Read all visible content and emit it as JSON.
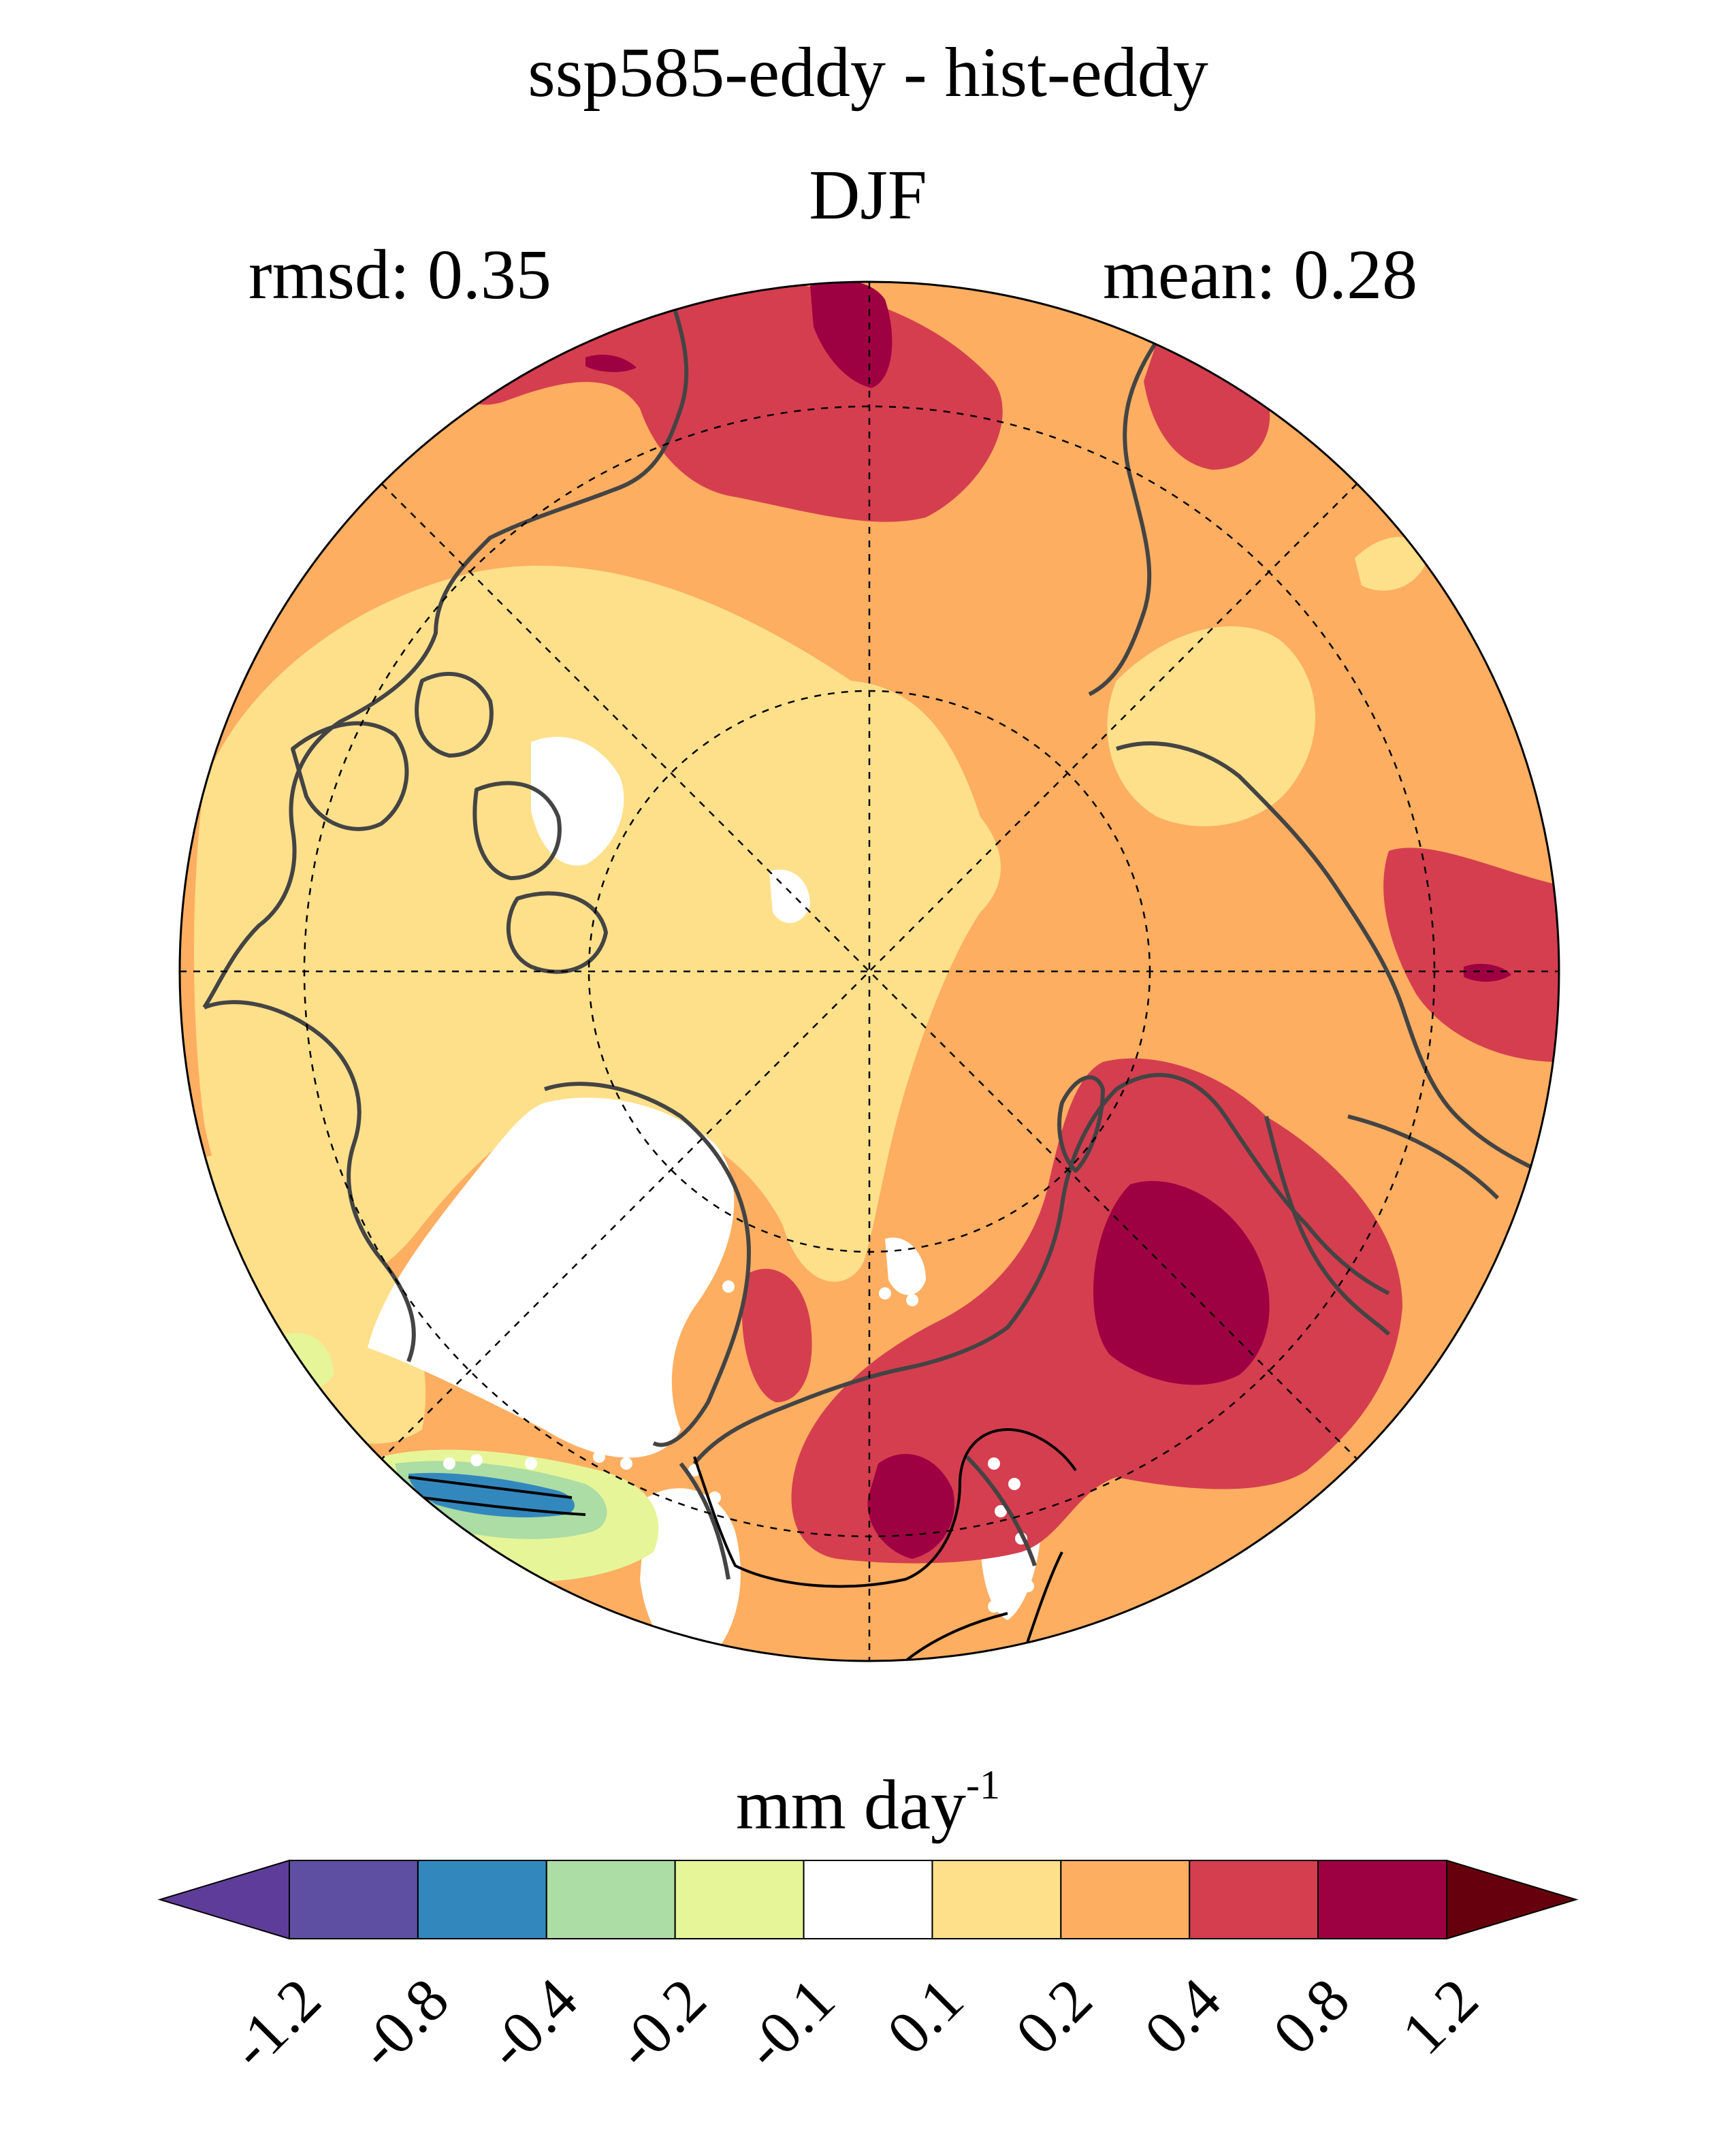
{
  "title": "ssp585-eddy - hist-eddy",
  "season": "DJF",
  "stats": {
    "rmsd_label": "rmsd: 0.35",
    "mean_label": "mean: 0.28"
  },
  "colorbar": {
    "units_main": "mm day",
    "units_exp": "-1",
    "tick_labels": [
      "-1.2",
      "-0.8",
      "-0.4",
      "-0.2",
      "-0.1",
      "0.1",
      "0.2",
      "0.4",
      "0.8",
      "1.2"
    ],
    "colors": [
      "#5e3c99",
      "#5e4fa2",
      "#3288bd",
      "#abdda4",
      "#e6f598",
      "#ffffff",
      "#fee08b",
      "#fdae61",
      "#d53e4f",
      "#9e0142",
      "#67000d"
    ]
  },
  "map": {
    "projection": "north polar stereographic",
    "fill_colors": {
      "orange": "#fdae61",
      "light_yellow": "#fee08b",
      "red": "#d53e4f",
      "dark_red": "#9e0142",
      "white": "#ffffff",
      "light_green": "#e6f598",
      "green": "#abdda4",
      "blue": "#3288bd"
    },
    "coastline_color": "#444444",
    "gridline_style": "dashed",
    "significance_markers": "white dots"
  }
}
